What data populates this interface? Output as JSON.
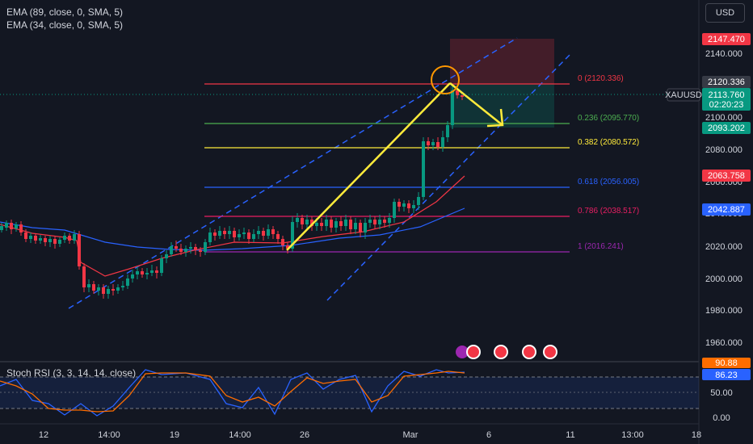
{
  "indicators": {
    "ema89": "EMA (89, close, 0, SMA, 5)",
    "ema34": "EMA (34, close, 0, SMA, 5)",
    "stoch": "Stoch RSI (3, 3, 14, 14, close)"
  },
  "currency_button": "USD",
  "symbol": "XAUUSD",
  "price": {
    "current": "2113.760",
    "countdown": "02:20:23",
    "stop": "2147.470",
    "entry": "2120.336",
    "target": "2093.202",
    "ema_red": "2063.758",
    "ema_blue": "2042.887"
  },
  "price_axis": [
    "2140.000",
    "2120.000",
    "2100.000",
    "2080.000",
    "2060.000",
    "2040.000",
    "2020.000",
    "2000.000",
    "1980.000",
    "1960.000"
  ],
  "fib": [
    {
      "label": "0 (2120.336)",
      "color": "#f23645"
    },
    {
      "label": "0.236 (2095.770)",
      "color": "#4caf50"
    },
    {
      "label": "0.382 (2080.572)",
      "color": "#ffeb3b"
    },
    {
      "label": "0.618 (2056.005)",
      "color": "#2962ff"
    },
    {
      "label": "0.786 (2038.517)",
      "color": "#e91e63"
    },
    {
      "label": "1 (2016.241)",
      "color": "#9c27b0"
    }
  ],
  "stoch_axis": [
    "50.00",
    "0.00"
  ],
  "stoch_values": {
    "k": "90.88",
    "d": "86.23"
  },
  "time_axis": [
    "12",
    "14:00",
    "19",
    "14:00",
    "26",
    "Mar",
    "6",
    "11",
    "13:00",
    "18"
  ],
  "colors": {
    "up": "#089981",
    "down": "#f23645",
    "ema_red": "#f23645",
    "ema_blue": "#2962ff",
    "yellow": "#ffeb3b",
    "dash": "#2962ff",
    "orange": "#ff9800",
    "stoch_k": "#2962ff",
    "stoch_d": "#ff6d00"
  }
}
